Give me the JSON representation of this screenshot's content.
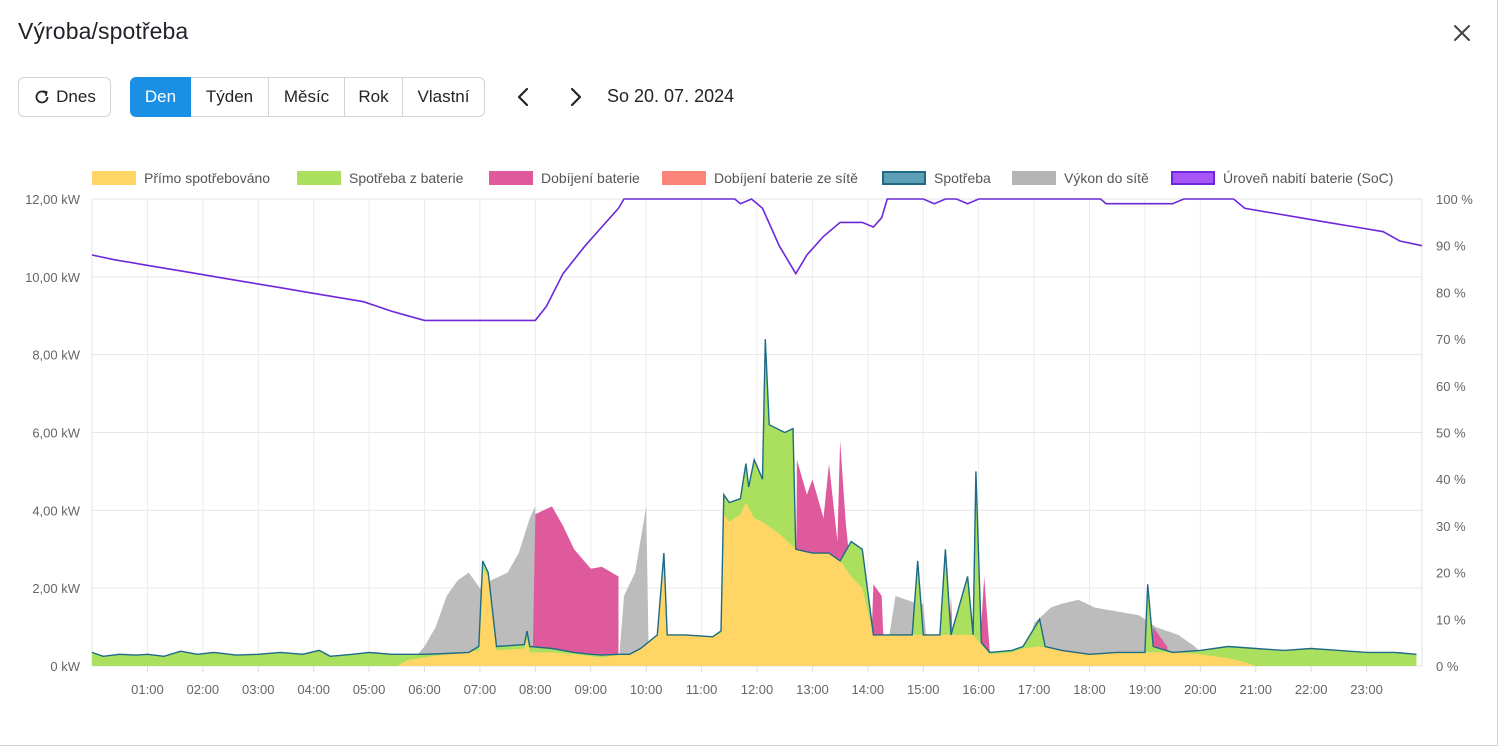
{
  "title": "Výroba/spotřeba",
  "toolbar": {
    "today_label": "Dnes",
    "periods": [
      "Den",
      "Týden",
      "Měsíc",
      "Rok",
      "Vlastní"
    ],
    "active_period": "Den",
    "date": "So 20. 07. 2024"
  },
  "chart_data": {
    "type": "area",
    "title": "",
    "xlabel": "",
    "ylabel": "",
    "ylabel_right": "",
    "x_ticks": [
      "01:00",
      "02:00",
      "03:00",
      "04:00",
      "05:00",
      "06:00",
      "07:00",
      "08:00",
      "09:00",
      "10:00",
      "11:00",
      "12:00",
      "13:00",
      "14:00",
      "15:00",
      "16:00",
      "17:00",
      "18:00",
      "19:00",
      "20:00",
      "21:00",
      "22:00",
      "23:00"
    ],
    "y_ticks": [
      "0 kW",
      "2,00 kW",
      "4,00 kW",
      "6,00 kW",
      "8,00 kW",
      "10,00 kW",
      "12,00 kW"
    ],
    "y_right_ticks": [
      "0 %",
      "10 %",
      "20 %",
      "30 %",
      "40 %",
      "50 %",
      "60 %",
      "70 %",
      "80 %",
      "90 %",
      "100 %"
    ],
    "ylim": [
      0,
      12
    ],
    "y_right_lim": [
      0,
      100
    ],
    "xlim": [
      0,
      24
    ],
    "grid": true,
    "legend_position": "top",
    "legend": [
      {
        "name": "Přímo spotřebováno",
        "color": "#ffd666",
        "border": "#ffd666"
      },
      {
        "name": "Spotřeba z baterie",
        "color": "#abe05e",
        "border": "#abe05e"
      },
      {
        "name": "Dobíjení baterie",
        "color": "#df5a9c",
        "border": "#df5a9c"
      },
      {
        "name": "Dobíjení baterie ze sítě",
        "color": "#fb8479",
        "border": "#fb8479"
      },
      {
        "name": "Spotřeba",
        "color": "#5e9fb5",
        "border": "#1d6b86"
      },
      {
        "name": "Výkon do sítě",
        "color": "#b5b5b5",
        "border": "#b5b5b5"
      },
      {
        "name": "Úroveň nabití baterie (SoC)",
        "color": "#a855f7",
        "border": "#6d28d9"
      }
    ],
    "series": {
      "consumption": [
        [
          0,
          0.35
        ],
        [
          0.2,
          0.25
        ],
        [
          0.5,
          0.3
        ],
        [
          0.8,
          0.28
        ],
        [
          1.0,
          0.3
        ],
        [
          1.3,
          0.25
        ],
        [
          1.6,
          0.38
        ],
        [
          1.9,
          0.3
        ],
        [
          2.2,
          0.35
        ],
        [
          2.6,
          0.28
        ],
        [
          3.0,
          0.3
        ],
        [
          3.4,
          0.35
        ],
        [
          3.8,
          0.3
        ],
        [
          4.1,
          0.4
        ],
        [
          4.3,
          0.25
        ],
        [
          4.7,
          0.3
        ],
        [
          5.0,
          0.35
        ],
        [
          5.4,
          0.3
        ],
        [
          5.7,
          0.3
        ],
        [
          6.0,
          0.3
        ],
        [
          6.4,
          0.32
        ],
        [
          6.8,
          0.35
        ],
        [
          6.98,
          0.5
        ],
        [
          7.05,
          2.7
        ],
        [
          7.15,
          2.4
        ],
        [
          7.3,
          0.5
        ],
        [
          7.8,
          0.55
        ],
        [
          7.85,
          0.9
        ],
        [
          7.9,
          0.5
        ],
        [
          8.3,
          0.45
        ],
        [
          8.7,
          0.35
        ],
        [
          9.0,
          0.3
        ],
        [
          9.2,
          0.28
        ],
        [
          9.5,
          0.3
        ],
        [
          9.7,
          0.3
        ],
        [
          9.9,
          0.45
        ],
        [
          10.2,
          0.8
        ],
        [
          10.32,
          2.9
        ],
        [
          10.38,
          0.8
        ],
        [
          10.7,
          0.8
        ],
        [
          11.2,
          0.75
        ],
        [
          11.35,
          0.9
        ],
        [
          11.4,
          4.4
        ],
        [
          11.5,
          4.2
        ],
        [
          11.7,
          4.3
        ],
        [
          11.8,
          5.2
        ],
        [
          11.85,
          4.6
        ],
        [
          11.95,
          5.3
        ],
        [
          12.1,
          4.8
        ],
        [
          12.15,
          8.4
        ],
        [
          12.22,
          6.2
        ],
        [
          12.5,
          6.0
        ],
        [
          12.65,
          6.1
        ],
        [
          12.7,
          3.0
        ],
        [
          13.0,
          2.9
        ],
        [
          13.3,
          2.9
        ],
        [
          13.5,
          2.7
        ],
        [
          13.7,
          3.2
        ],
        [
          13.9,
          3.0
        ],
        [
          14.1,
          0.8
        ],
        [
          14.5,
          0.8
        ],
        [
          14.8,
          0.8
        ],
        [
          14.9,
          2.7
        ],
        [
          15.0,
          0.8
        ],
        [
          15.3,
          0.8
        ],
        [
          15.4,
          3.0
        ],
        [
          15.5,
          0.8
        ],
        [
          15.8,
          2.3
        ],
        [
          15.9,
          0.8
        ],
        [
          15.95,
          5.0
        ],
        [
          16.05,
          0.6
        ],
        [
          16.2,
          0.35
        ],
        [
          16.6,
          0.4
        ],
        [
          16.8,
          0.5
        ],
        [
          17.1,
          1.2
        ],
        [
          17.2,
          0.5
        ],
        [
          17.5,
          0.4
        ],
        [
          18.0,
          0.3
        ],
        [
          18.5,
          0.35
        ],
        [
          19.0,
          0.35
        ],
        [
          19.05,
          2.1
        ],
        [
          19.15,
          0.5
        ],
        [
          19.5,
          0.35
        ],
        [
          20.0,
          0.4
        ],
        [
          20.5,
          0.5
        ],
        [
          21.0,
          0.45
        ],
        [
          21.5,
          0.4
        ],
        [
          22.0,
          0.45
        ],
        [
          22.5,
          0.4
        ],
        [
          23.0,
          0.35
        ],
        [
          23.5,
          0.35
        ],
        [
          23.9,
          0.3
        ]
      ],
      "direct": [
        [
          0,
          0
        ],
        [
          5.5,
          0
        ],
        [
          5.7,
          0.15
        ],
        [
          6.0,
          0.22
        ],
        [
          6.4,
          0.3
        ],
        [
          6.98,
          0.4
        ],
        [
          7.05,
          2.5
        ],
        [
          7.15,
          2.3
        ],
        [
          7.3,
          0.4
        ],
        [
          7.8,
          0.45
        ],
        [
          7.85,
          0.7
        ],
        [
          7.9,
          0.35
        ],
        [
          8.3,
          0.35
        ],
        [
          8.7,
          0.3
        ],
        [
          9.0,
          0.25
        ],
        [
          9.2,
          0.22
        ],
        [
          9.5,
          0.28
        ],
        [
          9.7,
          0.3
        ],
        [
          9.9,
          0.45
        ],
        [
          10.2,
          0.8
        ],
        [
          10.32,
          2.9
        ],
        [
          10.38,
          0.8
        ],
        [
          10.7,
          0.8
        ],
        [
          11.2,
          0.75
        ],
        [
          11.35,
          0.85
        ],
        [
          11.4,
          3.9
        ],
        [
          11.5,
          3.7
        ],
        [
          11.7,
          3.9
        ],
        [
          11.8,
          4.2
        ],
        [
          11.95,
          3.8
        ],
        [
          12.1,
          3.7
        ],
        [
          12.4,
          3.4
        ],
        [
          12.7,
          3.0
        ],
        [
          13.0,
          2.9
        ],
        [
          13.3,
          2.9
        ],
        [
          13.5,
          2.7
        ],
        [
          13.7,
          2.3
        ],
        [
          13.9,
          2.0
        ],
        [
          14.1,
          0.8
        ],
        [
          14.5,
          0.8
        ],
        [
          14.8,
          0.8
        ],
        [
          15.0,
          0.8
        ],
        [
          15.3,
          0.8
        ],
        [
          15.5,
          0.8
        ],
        [
          15.9,
          0.8
        ],
        [
          16.05,
          0.55
        ],
        [
          16.2,
          0.3
        ],
        [
          16.6,
          0.35
        ],
        [
          16.8,
          0.45
        ],
        [
          17.1,
          0.5
        ],
        [
          17.5,
          0.4
        ],
        [
          18.0,
          0.3
        ],
        [
          18.5,
          0.35
        ],
        [
          19.0,
          0.35
        ],
        [
          19.5,
          0.35
        ],
        [
          20.0,
          0.3
        ],
        [
          20.5,
          0.2
        ],
        [
          20.8,
          0.1
        ],
        [
          21.0,
          0
        ],
        [
          23.9,
          0
        ]
      ],
      "charging": [
        [
          0,
          0
        ],
        [
          7.95,
          0
        ],
        [
          8.0,
          3.9
        ],
        [
          8.15,
          4.0
        ],
        [
          8.3,
          4.1
        ],
        [
          8.5,
          3.6
        ],
        [
          8.7,
          3.0
        ],
        [
          9.0,
          2.5
        ],
        [
          9.2,
          2.55
        ],
        [
          9.5,
          2.3
        ],
        [
          9.5,
          0
        ],
        [
          12.7,
          0
        ],
        [
          12.72,
          5.3
        ],
        [
          12.9,
          4.4
        ],
        [
          13.0,
          4.8
        ],
        [
          13.2,
          3.8
        ],
        [
          13.3,
          5.2
        ],
        [
          13.45,
          3.2
        ],
        [
          13.5,
          5.8
        ],
        [
          13.6,
          3.7
        ],
        [
          13.7,
          2.3
        ],
        [
          13.7,
          0
        ],
        [
          14.05,
          0
        ],
        [
          14.1,
          2.1
        ],
        [
          14.25,
          1.8
        ],
        [
          14.3,
          0
        ],
        [
          15.45,
          0
        ],
        [
          15.5,
          1.8
        ],
        [
          15.55,
          0
        ],
        [
          16.0,
          0
        ],
        [
          16.1,
          2.3
        ],
        [
          16.2,
          0.4
        ],
        [
          16.25,
          0
        ],
        [
          19.1,
          0
        ],
        [
          19.15,
          1.0
        ],
        [
          19.4,
          0.5
        ],
        [
          19.45,
          0
        ],
        [
          23.9,
          0
        ]
      ],
      "export": [
        [
          0,
          0
        ],
        [
          5.7,
          0
        ],
        [
          6.0,
          0.5
        ],
        [
          6.2,
          1.0
        ],
        [
          6.4,
          1.8
        ],
        [
          6.6,
          2.2
        ],
        [
          6.8,
          2.4
        ],
        [
          7.0,
          2.0
        ],
        [
          7.2,
          2.2
        ],
        [
          7.5,
          2.4
        ],
        [
          7.7,
          2.9
        ],
        [
          7.9,
          3.8
        ],
        [
          8.0,
          4.1
        ],
        [
          8.0,
          0
        ],
        [
          9.5,
          0
        ],
        [
          9.6,
          1.8
        ],
        [
          9.8,
          2.4
        ],
        [
          10.0,
          4.1
        ],
        [
          10.05,
          0
        ],
        [
          14.3,
          0
        ],
        [
          14.5,
          1.8
        ],
        [
          14.9,
          1.6
        ],
        [
          15.0,
          1.6
        ],
        [
          15.1,
          0
        ],
        [
          16.8,
          0
        ],
        [
          17.0,
          1.1
        ],
        [
          17.3,
          1.5
        ],
        [
          17.5,
          1.6
        ],
        [
          17.8,
          1.7
        ],
        [
          18.1,
          1.5
        ],
        [
          18.5,
          1.4
        ],
        [
          18.9,
          1.3
        ],
        [
          19.2,
          1.0
        ],
        [
          19.6,
          0.8
        ],
        [
          19.9,
          0.5
        ],
        [
          20.1,
          0.2
        ],
        [
          20.3,
          0
        ],
        [
          23.9,
          0
        ]
      ],
      "soc": [
        [
          0,
          88
        ],
        [
          0.4,
          87
        ],
        [
          0.9,
          86
        ],
        [
          1.4,
          85
        ],
        [
          1.9,
          84
        ],
        [
          2.4,
          83
        ],
        [
          2.9,
          82
        ],
        [
          3.4,
          81
        ],
        [
          3.9,
          80
        ],
        [
          4.4,
          79
        ],
        [
          4.9,
          78
        ],
        [
          5.4,
          76
        ],
        [
          5.7,
          75
        ],
        [
          6.0,
          74
        ],
        [
          8.0,
          74
        ],
        [
          8.2,
          77
        ],
        [
          8.5,
          84
        ],
        [
          8.9,
          90
        ],
        [
          9.2,
          94
        ],
        [
          9.5,
          98
        ],
        [
          9.6,
          100
        ],
        [
          11.6,
          100
        ],
        [
          11.7,
          99
        ],
        [
          11.9,
          100
        ],
        [
          12.1,
          98
        ],
        [
          12.4,
          90
        ],
        [
          12.7,
          84
        ],
        [
          12.9,
          88
        ],
        [
          13.2,
          92
        ],
        [
          13.5,
          95
        ],
        [
          13.9,
          95
        ],
        [
          14.1,
          94
        ],
        [
          14.25,
          96
        ],
        [
          14.35,
          100
        ],
        [
          15.0,
          100
        ],
        [
          15.2,
          99
        ],
        [
          15.4,
          100
        ],
        [
          15.6,
          100
        ],
        [
          15.8,
          99
        ],
        [
          16.0,
          100
        ],
        [
          18.2,
          100
        ],
        [
          18.3,
          99
        ],
        [
          19.5,
          99
        ],
        [
          19.7,
          100
        ],
        [
          20.6,
          100
        ],
        [
          20.8,
          98
        ],
        [
          21.3,
          97
        ],
        [
          21.8,
          96
        ],
        [
          22.3,
          95
        ],
        [
          22.8,
          94
        ],
        [
          23.3,
          93
        ],
        [
          23.6,
          91
        ],
        [
          24.0,
          90
        ]
      ]
    }
  }
}
